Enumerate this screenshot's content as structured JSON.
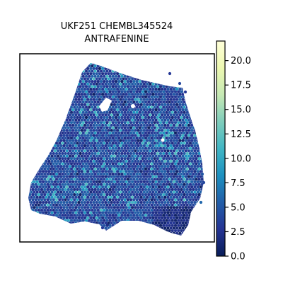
{
  "chart_data": {
    "type": "heatmap",
    "title_lines": [
      "UKF251 CHEMBL345524",
      "ANTRAFENINE"
    ],
    "xlabel": "",
    "ylabel": "",
    "grid": false,
    "colormap": "YlGnBu",
    "colormap_stops": [
      "#081d58",
      "#253494",
      "#225ea8",
      "#1d91c0",
      "#41b6c4",
      "#7fcdbb",
      "#c7e9b4",
      "#edf8b1",
      "#ffffd9"
    ],
    "colorbar": {
      "range": [
        0,
        22
      ],
      "ticks": [
        0.0,
        2.5,
        5.0,
        7.5,
        10.0,
        12.5,
        15.0,
        17.5,
        20.0
      ],
      "tick_labels": [
        "0.0",
        "2.5",
        "5.0",
        "7.5",
        "10.0",
        "12.5",
        "15.0",
        "17.5",
        "20.0"
      ]
    },
    "tissue_value_distribution": {
      "typical_range": [
        2,
        6
      ],
      "hotspot_range": [
        8,
        12
      ],
      "max_observed": 12
    }
  }
}
